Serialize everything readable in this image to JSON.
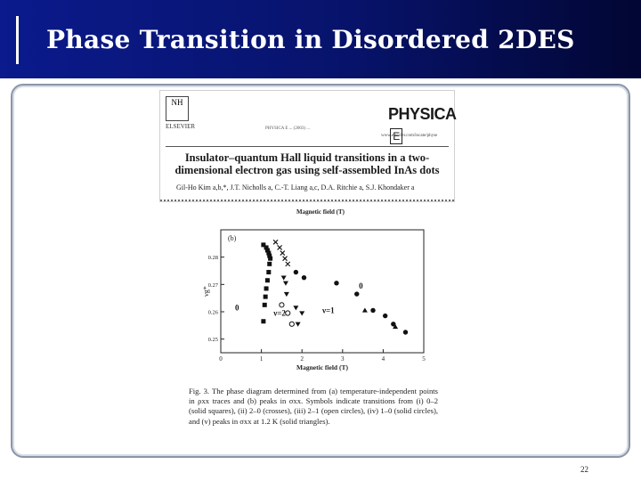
{
  "slide": {
    "title": "Phase Transition in Disordered 2DES",
    "page_number": "22"
  },
  "paper": {
    "publisher_logo": "NH",
    "publisher": "ELSEVIER",
    "journal_ref": "PHYSICA E ... (2003) ...",
    "journal_logo": "PHYSICA",
    "journal_logo_letter": "E",
    "journal_url": "www.elsevier.com/locate/physe",
    "title": "Insulator–quantum Hall liquid transitions in a two-dimensional electron gas using self-assembled InAs dots",
    "authors": "Gil-Ho Kim a,b,*, J.T. Nicholls a, C.-T. Liang a,c, D.A. Ritchie a, S.J. Khondaker a"
  },
  "top_xlabel": "Magnetic field (T)",
  "caption": "Fig. 3. The phase diagram determined from (a) temperature-independent points in ρxx traces and (b) peaks in σxx. Symbols indicate transitions from (i) 0–2 (solid squares), (ii) 2–0 (crosses), (iii) 2–1 (open circles), (iv) 1–0 (solid circles), and (v) peaks in σxx at 1.2 K (solid triangles).",
  "chart_data": {
    "type": "scatter",
    "panel_label": "(b)",
    "xlabel": "Magnetic field (T)",
    "ylabel": "νg*",
    "xlim": [
      0,
      5
    ],
    "ylim": [
      0.245,
      0.29
    ],
    "x_ticks": [
      "0",
      "1",
      "2",
      "3",
      "4",
      "5"
    ],
    "y_ticks": [
      "0.25",
      "0.26",
      "0.27",
      "0.28"
    ],
    "region_labels": [
      {
        "text": "0",
        "x": 0.4,
        "y": 0.2605
      },
      {
        "text": "ν=2",
        "x": 1.45,
        "y": 0.2585
      },
      {
        "text": "ν=1",
        "x": 2.65,
        "y": 0.2595
      },
      {
        "text": "0",
        "x": 3.45,
        "y": 0.2685
      }
    ],
    "series": [
      {
        "name": "solid squares",
        "marker": "square-filled",
        "x": [
          1.05,
          1.12,
          1.15,
          1.18,
          1.2,
          1.22,
          1.2,
          1.18,
          1.15,
          1.12,
          1.1,
          1.08,
          1.05
        ],
        "y": [
          0.2845,
          0.2835,
          0.2825,
          0.2815,
          0.2805,
          0.2795,
          0.2775,
          0.2745,
          0.2715,
          0.2685,
          0.2655,
          0.2625,
          0.2565
        ]
      },
      {
        "name": "crosses",
        "marker": "cross",
        "x": [
          1.35,
          1.45,
          1.52,
          1.58,
          1.65
        ],
        "y": [
          0.2855,
          0.2835,
          0.2815,
          0.2795,
          0.2775
        ]
      },
      {
        "name": "open circles",
        "marker": "circle-open",
        "x": [
          1.5,
          1.65,
          1.75
        ],
        "y": [
          0.2625,
          0.2595,
          0.2555
        ]
      },
      {
        "name": "solid circles",
        "marker": "circle-filled",
        "x": [
          1.85,
          2.05,
          2.85,
          3.35,
          3.75,
          4.05,
          4.25,
          4.55
        ],
        "y": [
          0.2745,
          0.2725,
          0.2705,
          0.2665,
          0.2605,
          0.2585,
          0.2555,
          0.2525
        ]
      },
      {
        "name": "solid triangles",
        "marker": "triangle-down-filled",
        "x": [
          1.55,
          1.6,
          1.62,
          1.85,
          2.0,
          1.9
        ],
        "y": [
          0.2725,
          0.2705,
          0.2665,
          0.2615,
          0.2595,
          0.2555
        ]
      },
      {
        "name": "solid triangles up",
        "marker": "triangle-up-filled",
        "x": [
          3.55,
          4.3
        ],
        "y": [
          0.2605,
          0.2545
        ]
      }
    ]
  }
}
